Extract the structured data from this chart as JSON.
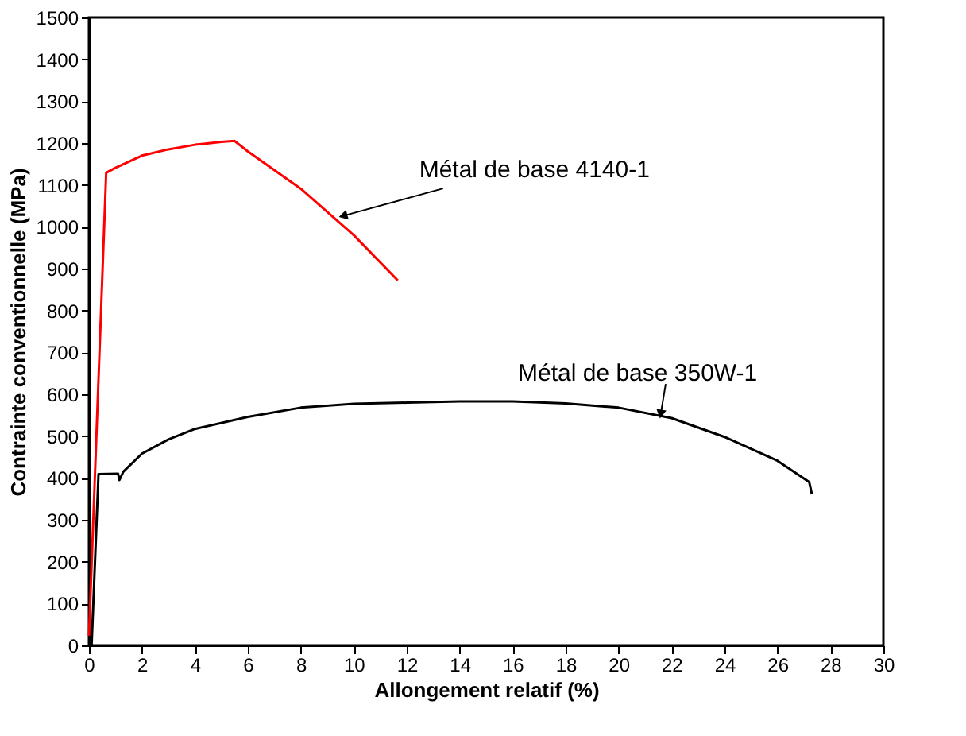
{
  "chart_data": {
    "type": "line",
    "xlabel": "Allongement relatif (%)",
    "ylabel": "Contrainte conventionnelle (MPa)",
    "xlim": [
      0,
      30
    ],
    "xticks": [
      0,
      2,
      4,
      6,
      8,
      10,
      12,
      14,
      16,
      18,
      20,
      22,
      24,
      26,
      28,
      30
    ],
    "ylim": [
      0,
      1500
    ],
    "yticks": [
      0,
      100,
      200,
      300,
      400,
      500,
      600,
      700,
      800,
      900,
      1000,
      1100,
      1200,
      1300,
      1400,
      1500
    ],
    "grid": false,
    "series": [
      {
        "color": "#ff0000",
        "x": [
          0,
          0.65,
          1,
          2,
          3,
          4,
          5,
          5.5,
          6,
          8,
          10,
          11.66
        ],
        "values": [
          23,
          1129,
          1141,
          1170,
          1185,
          1196,
          1203,
          1205,
          1180,
          1091,
          980,
          872
        ]
      },
      {
        "color": "#000000",
        "x": [
          0.1,
          0.36,
          1.1,
          1.15,
          1.3,
          2,
          3,
          4,
          6,
          8,
          10,
          12,
          14,
          16,
          18,
          20,
          22,
          24,
          26,
          27.2,
          27.3
        ],
        "values": [
          0,
          409,
          410,
          395,
          415,
          458,
          492,
          517,
          546,
          568,
          577,
          580,
          583,
          583,
          578,
          568,
          543,
          498,
          441,
          390,
          361
        ]
      }
    ],
    "annotations": [
      {
        "text": "Métal de base 4140-1",
        "x": 9.65,
        "y": 1027
      },
      {
        "text": "Métal de base 350W-1",
        "x": 21.6,
        "y": 556
      }
    ]
  }
}
